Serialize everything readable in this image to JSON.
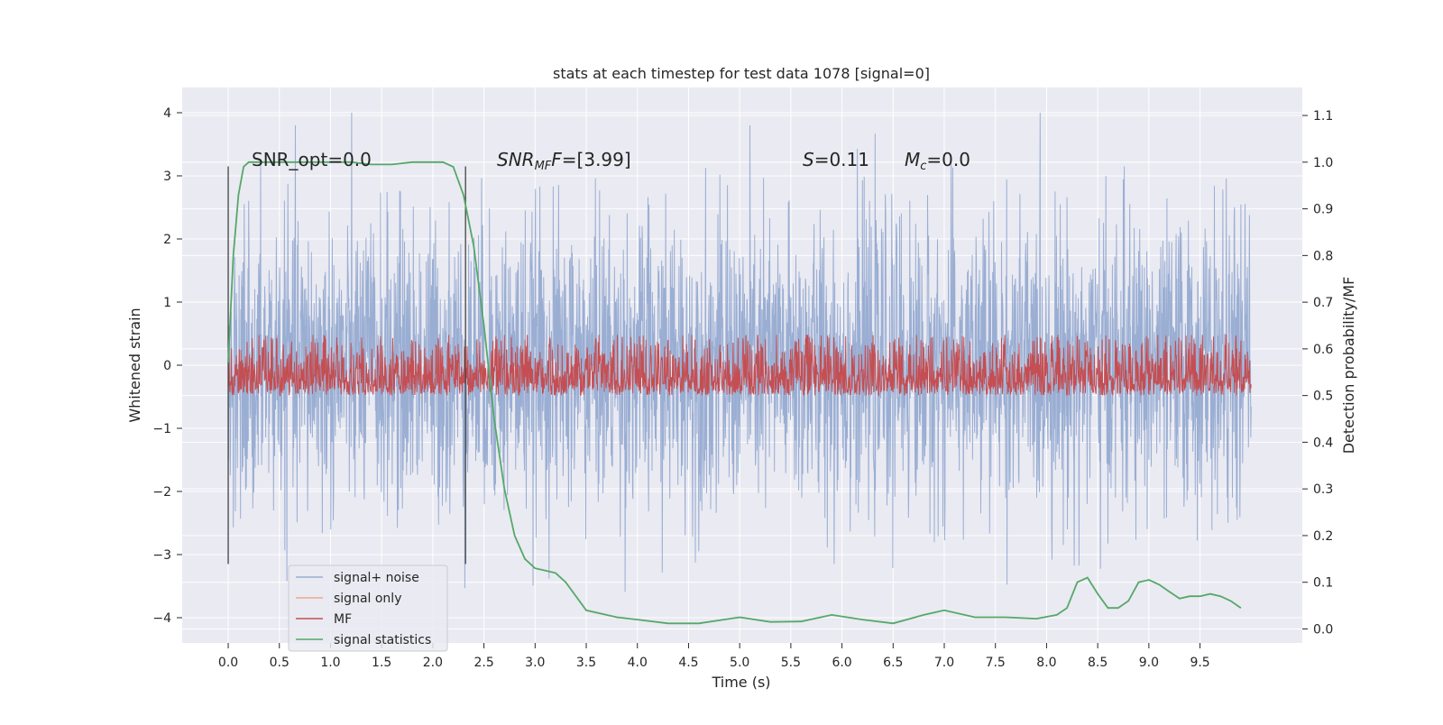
{
  "chart_data": {
    "type": "line",
    "title": "stats at each timestep for test data 1078 [signal=0]",
    "xlabel": "Time (s)",
    "ylabel": "Whitened strain",
    "y2label": "Detection probability/MF",
    "xlim": [
      -0.45,
      10.5
    ],
    "ylim": [
      -4.4,
      4.4
    ],
    "y2lim": [
      -0.03,
      1.16
    ],
    "x_ticks": [
      "0.0",
      "0.5",
      "1.0",
      "1.5",
      "2.0",
      "2.5",
      "3.0",
      "3.5",
      "4.0",
      "4.5",
      "5.0",
      "5.5",
      "6.0",
      "6.5",
      "7.0",
      "7.5",
      "8.0",
      "8.5",
      "9.0",
      "9.5"
    ],
    "y_ticks": [
      "4",
      "3",
      "2",
      "1",
      "0",
      "−1",
      "−2",
      "−3",
      "−4"
    ],
    "y_tick_values": [
      4,
      3,
      2,
      1,
      0,
      -1,
      -2,
      -3,
      -4
    ],
    "y2_ticks": [
      "1.1",
      "1.0",
      "0.9",
      "0.8",
      "0.7",
      "0.6",
      "0.5",
      "0.4",
      "0.3",
      "0.2",
      "0.1",
      "0.0"
    ],
    "y2_tick_values": [
      1.1,
      1.0,
      0.9,
      0.8,
      0.7,
      0.6,
      0.5,
      0.4,
      0.3,
      0.2,
      0.1,
      0.0
    ],
    "grid": true,
    "legend_position": "lower-left",
    "series": [
      {
        "name": "signal+ noise",
        "color": "#9aaed3",
        "axis": "left",
        "style": "noise band",
        "approx_range": [
          -4.0,
          4.0
        ],
        "x_range": [
          0.0,
          10.0
        ]
      },
      {
        "name": "signal only",
        "color": "#e9a98a",
        "axis": "left",
        "values": []
      },
      {
        "name": "MF",
        "color": "#c44e52",
        "axis": "right",
        "style": "noise band",
        "approx_range": [
          0.5,
          0.63
        ],
        "x_range": [
          0.0,
          10.0
        ]
      },
      {
        "name": "signal statistics",
        "color": "#55a868",
        "axis": "right",
        "x": [
          0.0,
          0.05,
          0.1,
          0.15,
          0.2,
          0.3,
          0.5,
          0.8,
          1.0,
          1.2,
          1.4,
          1.6,
          1.8,
          2.0,
          2.1,
          2.2,
          2.3,
          2.4,
          2.5,
          2.6,
          2.7,
          2.8,
          2.9,
          3.0,
          3.1,
          3.2,
          3.3,
          3.5,
          3.8,
          4.0,
          4.3,
          4.6,
          5.0,
          5.3,
          5.6,
          5.9,
          6.2,
          6.5,
          6.8,
          7.0,
          7.3,
          7.6,
          7.9,
          8.1,
          8.2,
          8.3,
          8.4,
          8.5,
          8.6,
          8.7,
          8.8,
          8.9,
          9.0,
          9.1,
          9.2,
          9.3,
          9.4,
          9.5,
          9.6,
          9.7,
          9.8,
          9.9
        ],
        "values": [
          0.57,
          0.8,
          0.93,
          0.99,
          1.0,
          1.0,
          1.0,
          1.0,
          1.0,
          1.0,
          0.995,
          0.995,
          1.0,
          1.0,
          1.0,
          0.99,
          0.93,
          0.82,
          0.65,
          0.45,
          0.3,
          0.2,
          0.15,
          0.13,
          0.125,
          0.12,
          0.1,
          0.04,
          0.025,
          0.02,
          0.012,
          0.012,
          0.025,
          0.015,
          0.016,
          0.03,
          0.02,
          0.012,
          0.03,
          0.04,
          0.025,
          0.025,
          0.022,
          0.03,
          0.045,
          0.1,
          0.11,
          0.075,
          0.045,
          0.045,
          0.06,
          0.1,
          0.105,
          0.095,
          0.08,
          0.065,
          0.07,
          0.07,
          0.075,
          0.07,
          0.06,
          0.045
        ]
      }
    ],
    "vlines": [
      0.0,
      2.32
    ],
    "annotations": {
      "snr_opt": "SNR_opt=0.0",
      "snr_mf_label": "SNR",
      "snr_mf_sub": "MF",
      "snr_mf_value": "=[3.99]",
      "s_label": "S",
      "s_value": "=0.11",
      "mc_label": "M",
      "mc_sub": "c",
      "mc_value": "=0.0"
    },
    "colors": {
      "plot_bg": "#eaeaf2",
      "grid": "#ffffff",
      "vline": "#444444"
    }
  }
}
